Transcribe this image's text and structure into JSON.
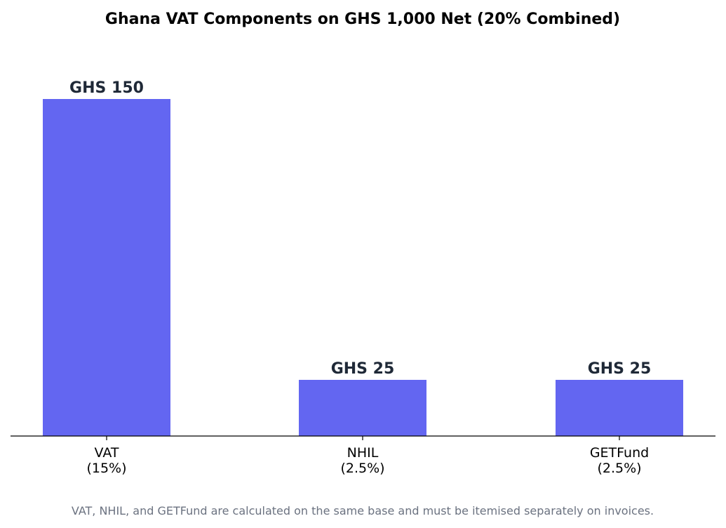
{
  "chart_data": {
    "type": "bar",
    "title": "Ghana VAT Components on GHS 1,000 Net (20% Combined)",
    "categories": [
      [
        "VAT",
        "(15%)"
      ],
      [
        "NHIL",
        "(2.5%)"
      ],
      [
        "GETFund",
        "(2.5%)"
      ]
    ],
    "values": [
      150,
      25,
      25
    ],
    "data_labels": [
      "GHS 150",
      "GHS 25",
      "GHS 25"
    ],
    "xlabel": "",
    "ylabel": "",
    "ylim": [
      0,
      180
    ],
    "grid": false,
    "bar_color": "#6366f1",
    "footnote": "VAT, NHIL, and GETFund are calculated on the same base and must be itemised separately on invoices."
  }
}
